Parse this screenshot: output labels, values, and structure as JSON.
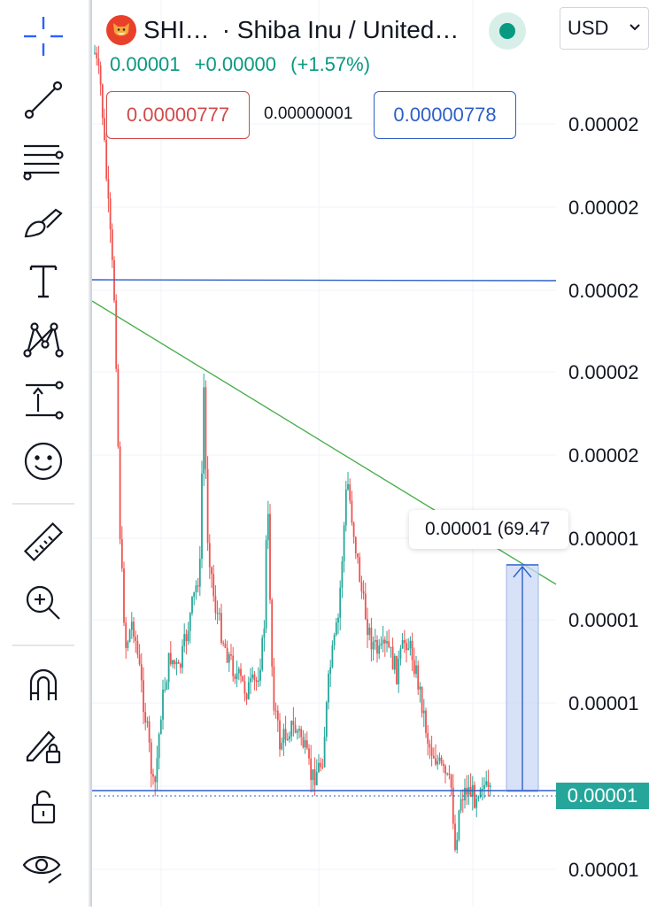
{
  "header": {
    "symbol": "SHI…",
    "description": "· Shiba Inu / United…",
    "currency": "USD",
    "status_color": "#089981"
  },
  "price": {
    "last": "0.00001",
    "change": "+0.00000",
    "change_pct": "(+1.57%)"
  },
  "quote": {
    "bid": "0.00000777",
    "spread": "0.00000001",
    "ask": "0.00000778"
  },
  "axis": {
    "labels": [
      "0.00002",
      "0.00002",
      "0.00002",
      "0.00002",
      "0.00002",
      "0.00001",
      "0.00001",
      "0.00001",
      "0.00001"
    ],
    "last_price_label": "0.00001"
  },
  "measure": {
    "label": "0.00001 (69.47"
  },
  "colors": {
    "up": "#26a69a",
    "down": "#ef5350",
    "trendline": "#4caf50",
    "hline": "#2e5fc7",
    "measure_fill": "#c9d8f5"
  },
  "toolbar": {
    "tools": [
      "crosshair-icon",
      "trend-line-icon",
      "fib-retracement-icon",
      "brush-icon",
      "text-icon",
      "pattern-icon",
      "measure-range-icon",
      "emoji-icon",
      "ruler-icon",
      "zoom-in-icon",
      "magnet-icon",
      "lock-drawing-icon",
      "unlock-icon",
      "eye-icon"
    ]
  }
}
